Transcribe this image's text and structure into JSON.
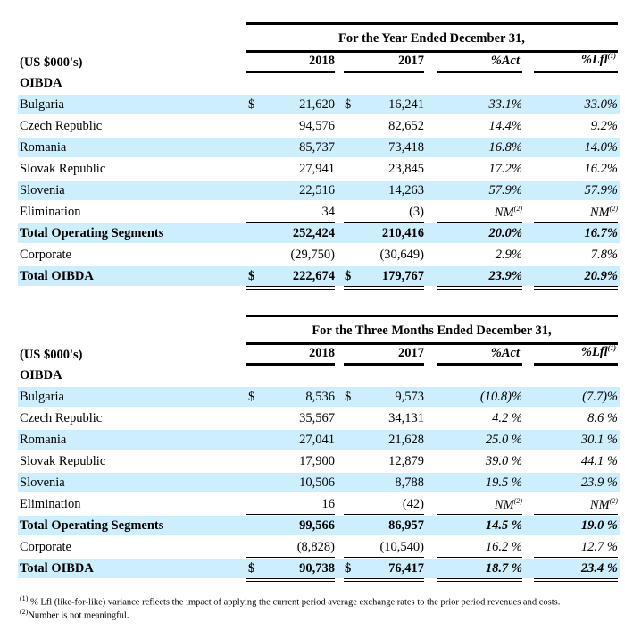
{
  "currency_symbol": "$",
  "footnotes": [
    {
      "mark": "(1)",
      "text": "% Lfl (like-for-like) variance reflects the impact of applying the current period average exchange rates to the prior period revenues and costs."
    },
    {
      "mark": "(2)",
      "text": "Number is not meaningful."
    }
  ],
  "tables": [
    {
      "period_header": "For the Year Ended December 31,",
      "units_label": "(US $000's)",
      "section": "OIBDA",
      "columns": {
        "y1": "2018",
        "y2": "2017",
        "act": "%Act",
        "lfl": "%Lfl",
        "lfl_note": "(1)"
      },
      "rows": [
        {
          "label": "Bulgaria",
          "y1": "21,620",
          "y2": "16,241",
          "act": "33.1%",
          "lfl": "33.0%",
          "cur": true
        },
        {
          "label": "Czech Republic",
          "y1": "94,576",
          "y2": "82,652",
          "act": "14.4%",
          "lfl": "9.2%"
        },
        {
          "label": "Romania",
          "y1": "85,737",
          "y2": "73,418",
          "act": "16.8%",
          "lfl": "14.0%"
        },
        {
          "label": "Slovak Republic",
          "y1": "27,941",
          "y2": "23,845",
          "act": "17.2%",
          "lfl": "16.2%"
        },
        {
          "label": "Slovenia",
          "y1": "22,516",
          "y2": "14,263",
          "act": "57.9%",
          "lfl": "57.9%"
        },
        {
          "label": "Elimination",
          "y1": "34",
          "y2": "(3)",
          "act": "NM",
          "act_note": "(2)",
          "lfl": "NM",
          "lfl_note": "(2)"
        },
        {
          "label": "Total Operating Segments",
          "y1": "252,424",
          "y2": "210,416",
          "act": "20.0%",
          "lfl": "16.7%",
          "bold": true
        },
        {
          "label": "Corporate",
          "y1": "(29,750)",
          "y2": "(30,649)",
          "act": "2.9%",
          "lfl": "7.8%"
        },
        {
          "label": "Total OIBDA",
          "y1": "222,674",
          "y2": "179,767",
          "act": "23.9%",
          "lfl": "20.9%",
          "bold": true,
          "cur": true
        }
      ]
    },
    {
      "period_header": "For the Three Months Ended December 31,",
      "units_label": "(US $000's)",
      "section": "OIBDA",
      "columns": {
        "y1": "2018",
        "y2": "2017",
        "act": "%Act",
        "lfl": "%Lfl",
        "lfl_note": "(1)"
      },
      "rows": [
        {
          "label": "Bulgaria",
          "y1": "8,536",
          "y2": "9,573",
          "act": "(10.8)%",
          "lfl": "(7.7)%",
          "cur": true
        },
        {
          "label": "Czech Republic",
          "y1": "35,567",
          "y2": "34,131",
          "act": "4.2 %",
          "lfl": "8.6 %"
        },
        {
          "label": "Romania",
          "y1": "27,041",
          "y2": "21,628",
          "act": "25.0 %",
          "lfl": "30.1 %"
        },
        {
          "label": "Slovak Republic",
          "y1": "17,900",
          "y2": "12,879",
          "act": "39.0 %",
          "lfl": "44.1 %"
        },
        {
          "label": "Slovenia",
          "y1": "10,506",
          "y2": "8,788",
          "act": "19.5 %",
          "lfl": "23.9 %"
        },
        {
          "label": "Elimination",
          "y1": "16",
          "y2": "(42)",
          "act": "NM",
          "act_note": "(2)",
          "lfl": "NM",
          "lfl_note": "(2)"
        },
        {
          "label": "Total Operating Segments",
          "y1": "99,566",
          "y2": "86,957",
          "act": "14.5 %",
          "lfl": "19.0 %",
          "bold": true
        },
        {
          "label": "Corporate",
          "y1": "(8,828)",
          "y2": "(10,540)",
          "act": "16.2 %",
          "lfl": "12.7 %"
        },
        {
          "label": "Total OIBDA",
          "y1": "90,738",
          "y2": "76,417",
          "act": "18.7 %",
          "lfl": "23.4 %",
          "bold": true,
          "cur": true
        }
      ]
    }
  ]
}
